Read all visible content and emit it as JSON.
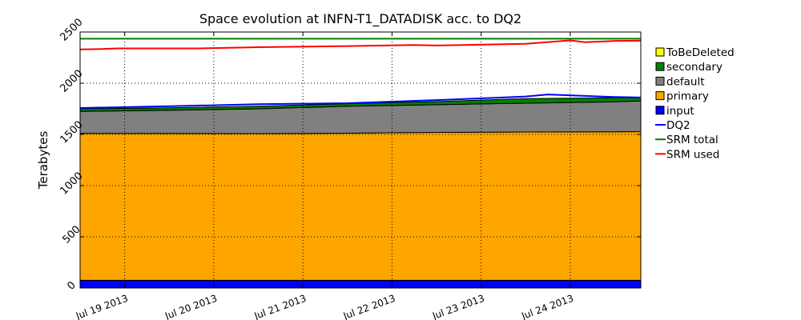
{
  "chart_data": {
    "type": "area",
    "title": "Space evolution at INFN-T1_DATADISK acc. to DQ2",
    "ylabel": "Terabytes",
    "xlabel": "",
    "x_unit": "days",
    "xlim": [
      "2013-07-18 12:00",
      "2013-07-24 19:00"
    ],
    "ylim": [
      0,
      2500
    ],
    "grid": true,
    "legend_position": "right",
    "x_ticks": [
      {
        "value": "2013-07-19",
        "label": "Jul 19 2013"
      },
      {
        "value": "2013-07-20",
        "label": "Jul 20 2013"
      },
      {
        "value": "2013-07-21",
        "label": "Jul 21 2013"
      },
      {
        "value": "2013-07-22",
        "label": "Jul 22 2013"
      },
      {
        "value": "2013-07-23",
        "label": "Jul 23 2013"
      },
      {
        "value": "2013-07-24",
        "label": "Jul 24 2013"
      }
    ],
    "y_ticks": [
      {
        "value": 0,
        "label": "0"
      },
      {
        "value": 500,
        "label": "500"
      },
      {
        "value": 1000,
        "label": "1000"
      },
      {
        "value": 1500,
        "label": "1500"
      },
      {
        "value": 2000,
        "label": "2000"
      },
      {
        "value": 2500,
        "label": "2500"
      }
    ],
    "x": [
      "2013-07-18 12:00",
      "2013-07-19 12:00",
      "2013-07-20 12:00",
      "2013-07-21 12:00",
      "2013-07-22 12:00",
      "2013-07-23 12:00",
      "2013-07-24 12:00",
      "2013-07-24 19:00"
    ],
    "stacked_series": [
      {
        "name": "input",
        "color": "#0000ff",
        "values": [
          75,
          75,
          75,
          75,
          75,
          75,
          75,
          75
        ]
      },
      {
        "name": "primary",
        "color": "#ffa500",
        "values": [
          1435,
          1435,
          1433,
          1437,
          1445,
          1448,
          1450,
          1452
        ]
      },
      {
        "name": "default",
        "color": "#808080",
        "values": [
          215,
          225,
          242,
          263,
          270,
          282,
          293,
          300
        ]
      },
      {
        "name": "secondary",
        "color": "#008000",
        "values": [
          25,
          25,
          25,
          25,
          30,
          45,
          40,
          30
        ]
      },
      {
        "name": "ToBeDeleted",
        "color": "#ffff00",
        "values": [
          0,
          0,
          0,
          0,
          0,
          0,
          0,
          0
        ]
      }
    ],
    "line_series": [
      {
        "name": "DQ2",
        "color": "#0000ff",
        "x": [
          "2013-07-18 12:00",
          "2013-07-19 12:00",
          "2013-07-20 12:00",
          "2013-07-21 12:00",
          "2013-07-22 12:00",
          "2013-07-23 12:00",
          "2013-07-23 18:00",
          "2013-07-24 12:00",
          "2013-07-24 19:00"
        ],
        "values": [
          1758,
          1775,
          1795,
          1805,
          1835,
          1870,
          1890,
          1865,
          1860
        ]
      },
      {
        "name": "SRM total",
        "color": "#008000",
        "x": [
          "2013-07-18 12:00",
          "2013-07-24 19:00"
        ],
        "values": [
          2435,
          2435
        ]
      },
      {
        "name": "SRM used",
        "color": "#ff0000",
        "x": [
          "2013-07-18 12:00",
          "2013-07-18 17:00",
          "2013-07-18 22:00",
          "2013-07-19 12:00",
          "2013-07-19 20:00",
          "2013-07-20 12:00",
          "2013-07-21 12:00",
          "2013-07-22 06:00",
          "2013-07-22 12:00",
          "2013-07-23 12:00",
          "2013-07-24 00:00",
          "2013-07-24 04:00",
          "2013-07-24 12:00",
          "2013-07-24 19:00"
        ],
        "values": [
          2330,
          2333,
          2340,
          2340,
          2340,
          2352,
          2362,
          2373,
          2368,
          2385,
          2418,
          2400,
          2413,
          2415
        ]
      }
    ],
    "legend": [
      {
        "name": "ToBeDeleted",
        "kind": "box",
        "color": "#ffff00"
      },
      {
        "name": "secondary",
        "kind": "box",
        "color": "#008000"
      },
      {
        "name": "default",
        "kind": "box",
        "color": "#808080"
      },
      {
        "name": "primary",
        "kind": "box",
        "color": "#ffa500"
      },
      {
        "name": "input",
        "kind": "box",
        "color": "#0000ff"
      },
      {
        "name": "DQ2",
        "kind": "line",
        "color": "#0000ff"
      },
      {
        "name": "SRM total",
        "kind": "line",
        "color": "#008000"
      },
      {
        "name": "SRM used",
        "kind": "line",
        "color": "#ff0000"
      }
    ]
  }
}
